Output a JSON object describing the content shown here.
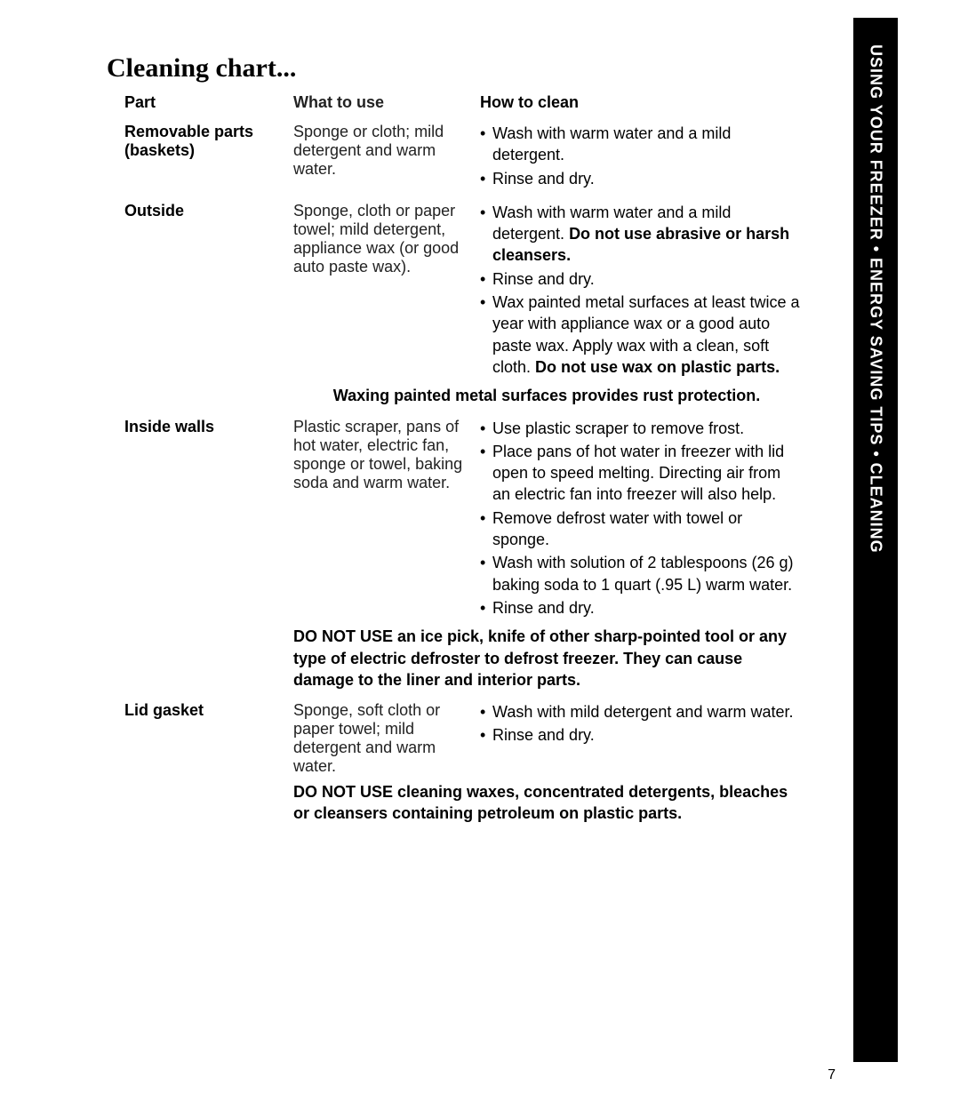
{
  "title": "Cleaning chart...",
  "sidebar": "USING YOUR FREEZER • ENERGY SAVING TIPS • CLEANING",
  "page_number": "7",
  "headers": {
    "part": "Part",
    "what_to_use": "What to use",
    "how_to_clean": "How to clean"
  },
  "rows": {
    "removable": {
      "part_l1": "Removable parts",
      "part_l2": "(baskets)",
      "use": "Sponge or cloth; mild detergent and warm water.",
      "clean_1": "Wash with warm water and a mild detergent.",
      "clean_2": "Rinse and dry."
    },
    "outside": {
      "part": "Outside",
      "use": "Sponge, cloth or paper towel; mild detergent, appliance wax (or good auto paste wax).",
      "clean_1a": "Wash with warm water and a mild detergent. ",
      "clean_1b": "Do not use abrasive or harsh cleansers.",
      "clean_2": "Rinse and dry.",
      "clean_3a": "Wax painted metal surfaces at least twice a year with appliance wax or a good auto paste wax. Apply wax with a clean, soft cloth. ",
      "clean_3b": "Do not use wax on plastic parts.",
      "note": "Waxing painted metal surfaces provides rust protection."
    },
    "inside": {
      "part": "Inside walls",
      "use": "Plastic scraper, pans of hot water, electric fan, sponge or towel, baking soda and warm water.",
      "clean_1": "Use plastic scraper to remove frost.",
      "clean_2": "Place pans of hot water in freezer with lid open to speed melting. Directing air from an electric fan into freezer will also help.",
      "clean_3": "Remove defrost water with towel or sponge.",
      "clean_4": "Wash with solution of 2 tablespoons (26 g) baking soda to 1 quart (.95 L) warm water.",
      "clean_5": "Rinse and dry.",
      "note": "DO NOT USE an ice pick, knife of other sharp-pointed tool or any type of electric defroster to defrost freezer. They can cause damage to the liner and interior parts."
    },
    "lid": {
      "part": "Lid gasket",
      "use": "Sponge, soft cloth or paper towel; mild detergent and warm water.",
      "clean_1": "Wash with mild detergent and warm water.",
      "clean_2": "Rinse and dry.",
      "note": "DO NOT USE cleaning waxes, concentrated detergents, bleaches or cleansers containing petroleum on plastic parts."
    }
  }
}
